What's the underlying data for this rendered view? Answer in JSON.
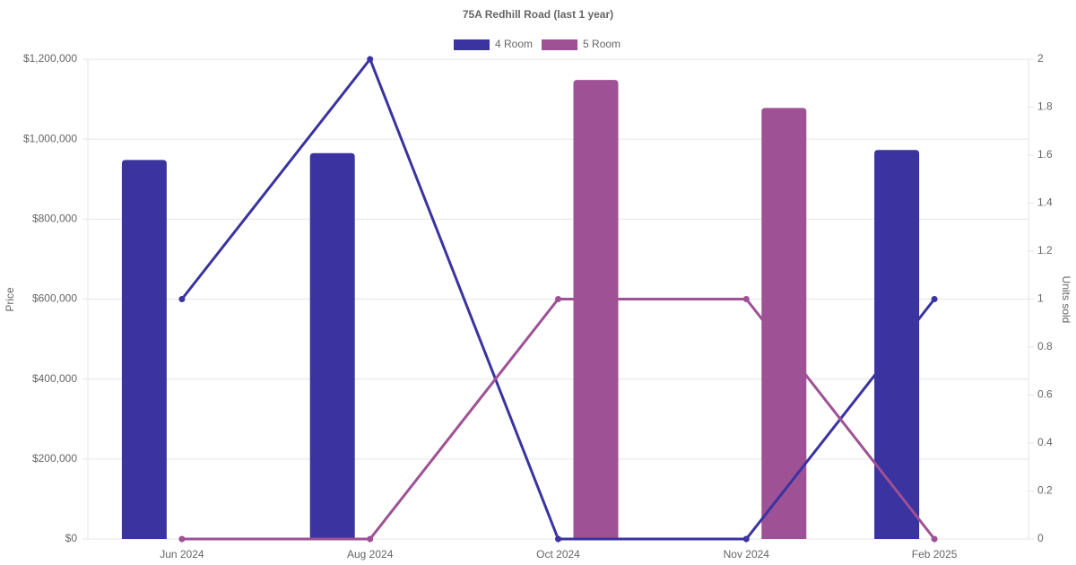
{
  "chart_data": {
    "type": "bar-line",
    "title": "75A Redhill Road (last 1 year)",
    "y_label": "Price",
    "y2_label": "Units sold",
    "categories": [
      "Jun 2024",
      "Aug 2024",
      "Oct 2024",
      "Nov 2024",
      "Feb 2025"
    ],
    "series": [
      {
        "name": "4 Room",
        "color": "#3a33a0",
        "values": [
          948000,
          965000,
          null,
          null,
          973000
        ],
        "units": [
          1,
          2,
          0,
          0,
          1
        ]
      },
      {
        "name": "5 Room",
        "color": "#9e5194",
        "values": [
          null,
          null,
          1148000,
          1078000,
          null
        ],
        "units": [
          0,
          0,
          1,
          1,
          0
        ]
      }
    ],
    "ylim": [
      0,
      1200000
    ],
    "yticks": [
      {
        "value": 0,
        "label": "$0"
      },
      {
        "value": 200000,
        "label": "$200,000"
      },
      {
        "value": 400000,
        "label": "$400,000"
      },
      {
        "value": 600000,
        "label": "$600,000"
      },
      {
        "value": 800000,
        "label": "$800,000"
      },
      {
        "value": 1000000,
        "label": "$1,000,000"
      },
      {
        "value": 1200000,
        "label": "$1,200,000"
      }
    ],
    "y2lim": [
      0,
      2
    ],
    "y2ticks": [
      0,
      0.2,
      0.4,
      0.6,
      0.8,
      1,
      1.2,
      1.4,
      1.6,
      1.8,
      2
    ],
    "grid": true,
    "legend": "top"
  }
}
